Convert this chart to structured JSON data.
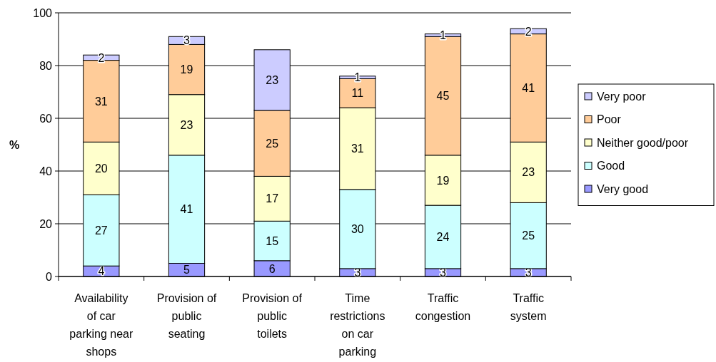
{
  "chart_data": {
    "type": "bar",
    "stacked": true,
    "ylabel": "%",
    "categories": [
      "Availability of car parking near shops",
      "Provision of public seating",
      "Provision of public toilets",
      "Time restrictions on car parking",
      "Traffic congestion",
      "Traffic system"
    ],
    "series": [
      {
        "name": "Very good",
        "color": "#9999ff",
        "values": [
          4,
          5,
          6,
          3,
          3,
          3
        ]
      },
      {
        "name": "Good",
        "color": "#ccffff",
        "values": [
          27,
          41,
          15,
          30,
          24,
          25
        ]
      },
      {
        "name": "Neither good/poor",
        "color": "#ffffcc",
        "values": [
          20,
          23,
          17,
          31,
          19,
          23
        ]
      },
      {
        "name": "Poor",
        "color": "#ffcc99",
        "values": [
          31,
          19,
          25,
          11,
          45,
          41
        ]
      },
      {
        "name": "Very poor",
        "color": "#ccccff",
        "values": [
          2,
          3,
          23,
          1,
          1,
          2
        ]
      }
    ],
    "ylim": [
      0,
      100
    ],
    "yticks": [
      0,
      20,
      40,
      60,
      80,
      100
    ],
    "grid": "y",
    "legend": "right",
    "data_labels": true
  }
}
